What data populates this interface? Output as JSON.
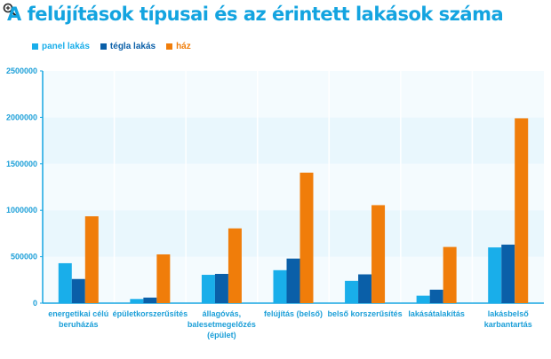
{
  "chart_data": {
    "type": "bar",
    "title": "A felújítások típusai és az érintett lakások száma",
    "categories": [
      [
        "energetikai célú",
        "beruházás"
      ],
      [
        "épületkorszerűsítés"
      ],
      [
        "állagóvás,",
        "balesetmegelőzés",
        "(épület)"
      ],
      [
        "felújítás (belső)"
      ],
      [
        "belső korszerűsítés"
      ],
      [
        "lakásátalakítás"
      ],
      [
        "lakásbelső",
        "karbantartás"
      ]
    ],
    "series": [
      {
        "name": "panel lakás",
        "color": "#19aeea",
        "values": [
          430000,
          45000,
          305000,
          355000,
          240000,
          80000,
          600000
        ]
      },
      {
        "name": "tégla lakás",
        "color": "#0a5fa8",
        "values": [
          260000,
          60000,
          315000,
          480000,
          310000,
          145000,
          630000
        ]
      },
      {
        "name": "ház",
        "color": "#f07d0a",
        "values": [
          935000,
          525000,
          805000,
          1405000,
          1055000,
          605000,
          1990000
        ]
      }
    ],
    "ylim": [
      0,
      2500000
    ],
    "yticks": [
      "2500000",
      "2000000",
      "1500000",
      "1000000",
      "500000",
      "0"
    ],
    "grid": true,
    "legend_position": "top-left"
  }
}
